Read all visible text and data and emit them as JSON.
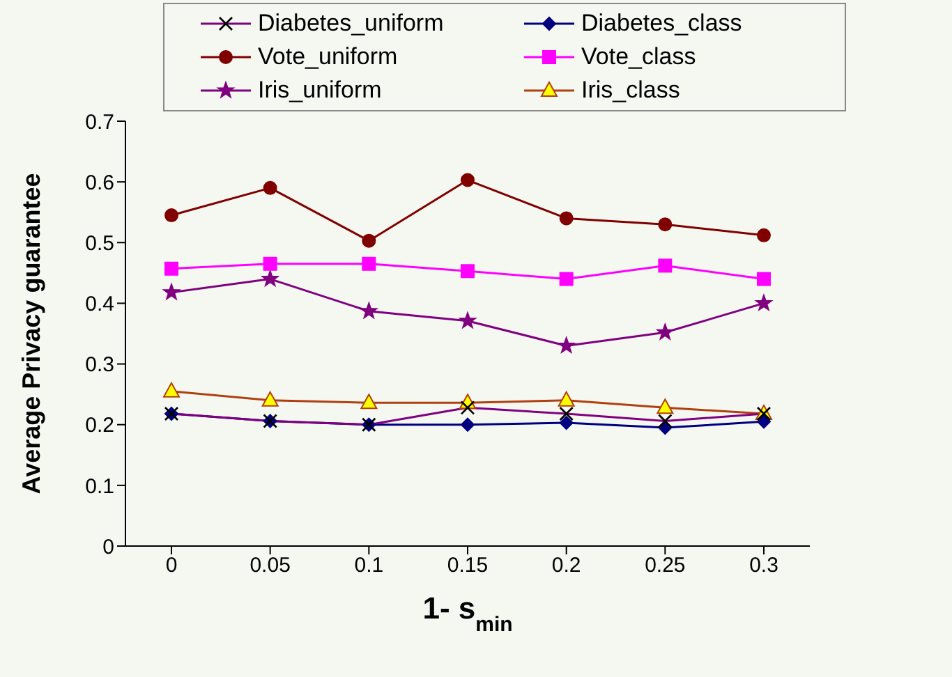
{
  "chart_data": {
    "type": "line",
    "xlabel": "1- s$_{min}$",
    "ylabel": "Average Privacy guarantee",
    "categories": [
      "0",
      "0.05",
      "0.1",
      "0.15",
      "0.2",
      "0.25",
      "0.3"
    ],
    "series": [
      {
        "name": "Diabetes_uniform",
        "color": "#800080",
        "marker": "cross",
        "values": [
          0.218,
          0.206,
          0.2,
          0.228,
          0.218,
          0.206,
          0.218
        ]
      },
      {
        "name": "Diabetes_class",
        "color": "#000080",
        "marker": "diamond",
        "values": [
          0.218,
          0.206,
          0.2,
          0.2,
          0.203,
          0.195,
          0.205
        ]
      },
      {
        "name": "Vote_uniform",
        "color": "#800000",
        "marker": "circle",
        "values": [
          0.545,
          0.59,
          0.503,
          0.603,
          0.54,
          0.53,
          0.512
        ]
      },
      {
        "name": "Vote_class",
        "color": "#ff00ff",
        "marker": "square",
        "values": [
          0.457,
          0.465,
          0.465,
          0.453,
          0.44,
          0.462,
          0.44
        ]
      },
      {
        "name": "Iris_uniform",
        "color": "#800080",
        "marker": "star",
        "values": [
          0.418,
          0.44,
          0.387,
          0.371,
          0.33,
          0.352,
          0.4
        ]
      },
      {
        "name": "Iris_class",
        "color": "#b04010",
        "marker": "triangle",
        "values": [
          0.255,
          0.24,
          0.236,
          0.236,
          0.24,
          0.228,
          0.218
        ]
      }
    ],
    "ylim": [
      0,
      0.7
    ],
    "yticks": [
      0,
      0.1,
      0.2,
      0.3,
      0.4,
      0.5,
      0.6,
      0.7
    ],
    "grid": false,
    "legend": "top"
  }
}
